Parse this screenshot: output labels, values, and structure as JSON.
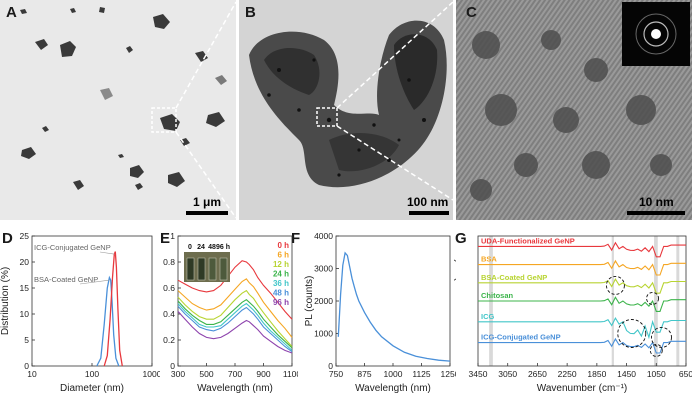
{
  "panels": {
    "A": {
      "label": "A",
      "scale": "1 μm"
    },
    "B": {
      "label": "B",
      "scale": "100 nm"
    },
    "C": {
      "label": "C",
      "scale": "10 nm"
    },
    "D": {
      "label": "D"
    },
    "E": {
      "label": "E",
      "inset_labels": [
        "0",
        "24",
        "48",
        "96 h"
      ]
    },
    "F": {
      "label": "F"
    },
    "G": {
      "label": "G"
    }
  },
  "chart_data": [
    {
      "id": "D",
      "type": "line",
      "xlabel": "Diameter (nm)",
      "ylabel": "Distribution (%)",
      "xscale": "log",
      "xlim": [
        10,
        1000
      ],
      "ylim": [
        0,
        25
      ],
      "xticks": [
        "10",
        "100",
        "1000"
      ],
      "yticks": [
        "0",
        "5",
        "10",
        "15",
        "20",
        "25"
      ],
      "annotations": [
        "ICG-Conjugated GeNP",
        "BSA-Coated GeNP"
      ],
      "series": [
        {
          "name": "BSA-Coated GeNP",
          "color": "#4a90d9",
          "x": [
            120,
            140,
            160,
            180,
            195,
            205,
            215,
            230,
            250,
            280
          ],
          "y": [
            0,
            1.5,
            8,
            15,
            17,
            16.5,
            13,
            6,
            1.5,
            0
          ]
        },
        {
          "name": "ICG-Conjugated GeNP",
          "color": "#e8383d",
          "x": [
            160,
            180,
            200,
            220,
            235,
            245,
            255,
            270,
            290,
            320
          ],
          "y": [
            0,
            2,
            9,
            17,
            21.5,
            22,
            19,
            11,
            3,
            0
          ]
        }
      ]
    },
    {
      "id": "E",
      "type": "line",
      "xlabel": "Wavelength (nm)",
      "ylabel": "Absorbance",
      "xlim": [
        300,
        1100
      ],
      "ylim": [
        0,
        1
      ],
      "xticks": [
        "300",
        "500",
        "700",
        "900",
        "1100"
      ],
      "yticks": [
        "0",
        "0.2",
        "0.4",
        "0.6",
        "0.8",
        "1"
      ],
      "x": [
        300,
        350,
        400,
        450,
        500,
        550,
        600,
        650,
        700,
        750,
        780,
        800,
        830,
        860,
        900,
        950,
        1000,
        1050,
        1100
      ],
      "series": [
        {
          "name": "0 h",
          "color": "#e8383d",
          "values": [
            0.66,
            0.63,
            0.6,
            0.58,
            0.57,
            0.58,
            0.62,
            0.69,
            0.76,
            0.81,
            0.8,
            0.78,
            0.74,
            0.68,
            0.62,
            0.56,
            0.49,
            0.42,
            0.36
          ]
        },
        {
          "name": "6 h",
          "color": "#f5a623",
          "values": [
            0.58,
            0.53,
            0.48,
            0.45,
            0.43,
            0.44,
            0.47,
            0.53,
            0.59,
            0.65,
            0.67,
            0.64,
            0.61,
            0.56,
            0.49,
            0.42,
            0.35,
            0.29,
            0.22
          ]
        },
        {
          "name": "12 h",
          "color": "#b8d432",
          "values": [
            0.53,
            0.47,
            0.42,
            0.38,
            0.36,
            0.36,
            0.39,
            0.45,
            0.51,
            0.56,
            0.58,
            0.55,
            0.52,
            0.47,
            0.41,
            0.34,
            0.27,
            0.21,
            0.15
          ]
        },
        {
          "name": "24 h",
          "color": "#3cb44b",
          "values": [
            0.5,
            0.44,
            0.39,
            0.35,
            0.32,
            0.32,
            0.34,
            0.39,
            0.44,
            0.49,
            0.51,
            0.49,
            0.46,
            0.42,
            0.36,
            0.3,
            0.24,
            0.19,
            0.14
          ]
        },
        {
          "name": "36 h",
          "color": "#42c6c9",
          "values": [
            0.48,
            0.42,
            0.37,
            0.32,
            0.3,
            0.3,
            0.31,
            0.36,
            0.41,
            0.46,
            0.48,
            0.46,
            0.43,
            0.39,
            0.33,
            0.27,
            0.22,
            0.17,
            0.12
          ]
        },
        {
          "name": "48 h",
          "color": "#4a90d9",
          "values": [
            0.46,
            0.4,
            0.35,
            0.3,
            0.28,
            0.27,
            0.29,
            0.33,
            0.38,
            0.43,
            0.45,
            0.43,
            0.4,
            0.36,
            0.3,
            0.25,
            0.2,
            0.15,
            0.11
          ]
        },
        {
          "name": "96 h",
          "color": "#8e44ad",
          "values": [
            0.42,
            0.36,
            0.3,
            0.25,
            0.22,
            0.21,
            0.22,
            0.25,
            0.29,
            0.33,
            0.35,
            0.34,
            0.31,
            0.28,
            0.23,
            0.19,
            0.15,
            0.12,
            0.1
          ]
        }
      ]
    },
    {
      "id": "F",
      "type": "line",
      "xlabel": "Wavelength (nm)",
      "ylabel": "PL (counts)",
      "xlim": [
        750,
        1250
      ],
      "ylim": [
        0,
        4000
      ],
      "xticks": [
        "750",
        "875",
        "1000",
        "1125",
        "1250"
      ],
      "yticks": [
        "0",
        "1000",
        "2000",
        "3000",
        "4000"
      ],
      "series": [
        {
          "name": "PL",
          "color": "#4a90d9",
          "x": [
            760,
            770,
            780,
            790,
            800,
            810,
            820,
            830,
            840,
            850,
            875,
            900,
            925,
            950,
            1000,
            1050,
            1100,
            1150,
            1200,
            1250
          ],
          "y": [
            900,
            2200,
            3100,
            3480,
            3400,
            3050,
            2700,
            2450,
            2200,
            2000,
            1650,
            1350,
            1100,
            900,
            620,
            420,
            300,
            230,
            180,
            150
          ]
        }
      ]
    },
    {
      "id": "G",
      "type": "line",
      "xlabel": "Wavenumber (cm⁻¹)",
      "ylabel": "Transmission (a.u.)",
      "xlim": [
        3450,
        650
      ],
      "xticks": [
        "3450",
        "3050",
        "2650",
        "2250",
        "1850",
        "1450",
        "1050",
        "650"
      ],
      "series": [
        {
          "name": "UDA-Functionalized GeNP",
          "color": "#e8383d"
        },
        {
          "name": "BSA",
          "color": "#f5a623"
        },
        {
          "name": "BSA-Coated GeNP",
          "color": "#b8d432"
        },
        {
          "name": "Chitosan",
          "color": "#3cb44b"
        },
        {
          "name": "ICG",
          "color": "#42c6c9"
        },
        {
          "name": "ICG-Conjugated GeNP",
          "color": "#4a90d9"
        }
      ]
    }
  ]
}
